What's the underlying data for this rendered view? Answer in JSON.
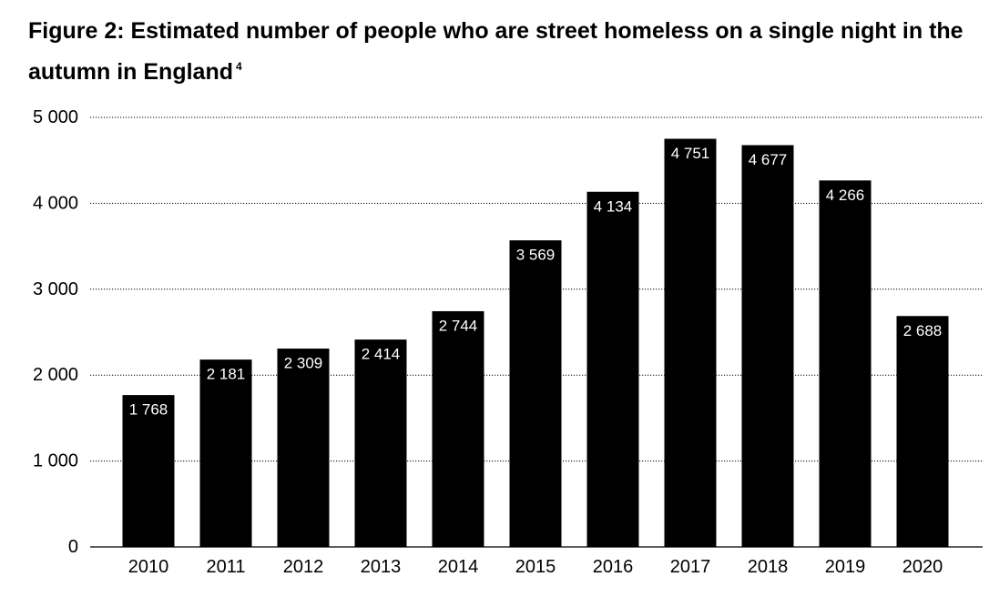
{
  "title": {
    "text": "Figure 2: Estimated number of people who are street homeless on a single night in the autumn in England",
    "footnote": "4"
  },
  "chart_data": {
    "type": "bar",
    "title": "Figure 2: Estimated number of people who are street homeless on a single night in the autumn in England",
    "xlabel": "",
    "ylabel": "",
    "categories": [
      "2010",
      "2011",
      "2012",
      "2013",
      "2014",
      "2015",
      "2016",
      "2017",
      "2018",
      "2019",
      "2020"
    ],
    "values": [
      1768,
      2181,
      2309,
      2414,
      2744,
      3569,
      4134,
      4751,
      4677,
      4266,
      2688
    ],
    "value_labels": [
      "1 768",
      "2 181",
      "2 309",
      "2 414",
      "2 744",
      "3 569",
      "4 134",
      "4 751",
      "4 677",
      "4 266",
      "2 688"
    ],
    "ylim": [
      0,
      5000
    ],
    "yticks": [
      0,
      1000,
      2000,
      3000,
      4000,
      5000
    ],
    "ytick_labels": [
      "0",
      "1 000",
      "2 000",
      "3 000",
      "4 000",
      "5 000"
    ],
    "grid": true,
    "grid_style": "dotted",
    "bar_color": "#000000",
    "label_color": "#ffffff",
    "legend": "none"
  }
}
